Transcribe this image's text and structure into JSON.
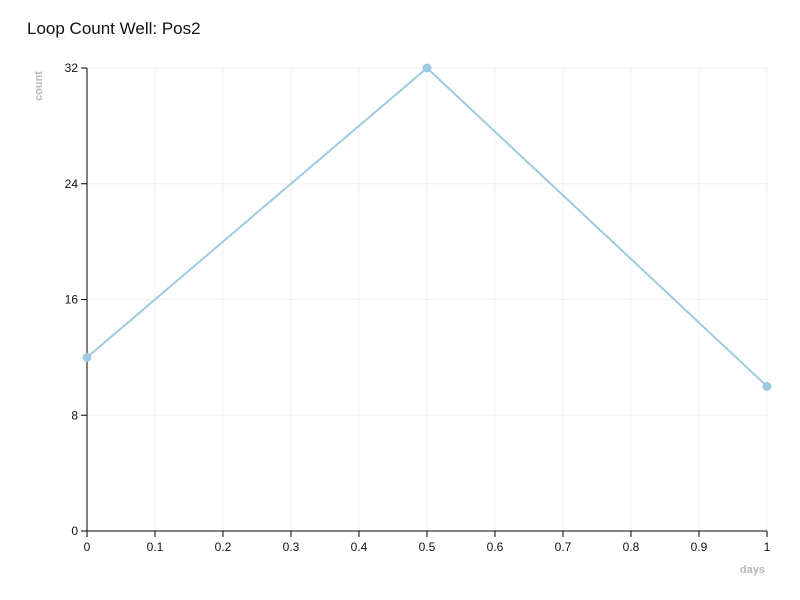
{
  "title": "Loop Count Well: Pos2",
  "colors": {
    "series": "#9ecae1",
    "grid": "#f0f0f0",
    "axis": "#000000",
    "axis_title": "#b9b9b9"
  },
  "chart_data": {
    "type": "line",
    "title": "Loop Count Well: Pos2",
    "xlabel": "days",
    "ylabel": "count",
    "xlim": [
      0,
      1
    ],
    "ylim": [
      0,
      32
    ],
    "x_ticks": [
      0,
      0.1,
      0.2,
      0.3,
      0.4,
      0.5,
      0.6,
      0.7,
      0.8,
      0.9,
      1
    ],
    "x_tick_labels": [
      "0",
      "0.1",
      "0.2",
      "0.3",
      "0.4",
      "0.5",
      "0.6",
      "0.7",
      "0.8",
      "0.9",
      "1"
    ],
    "y_ticks": [
      0,
      8,
      16,
      24,
      32
    ],
    "y_tick_labels": [
      "0",
      "8",
      "16",
      "24",
      "32"
    ],
    "grid": true,
    "legend": "none",
    "series": [
      {
        "x": [
          0,
          0.5,
          1
        ],
        "y": [
          12,
          32,
          10
        ]
      }
    ]
  }
}
